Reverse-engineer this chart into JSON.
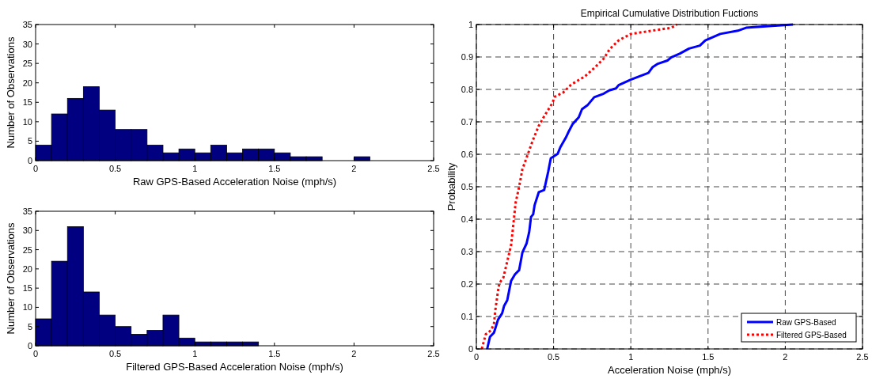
{
  "chart_data": [
    {
      "type": "histogram",
      "xlabel": "Raw GPS-Based Acceleration Noise (mph/s)",
      "ylabel": "Number of Observations",
      "color": "#000080",
      "bins": [
        0,
        0.1,
        0.2,
        0.3,
        0.4,
        0.5,
        0.6,
        0.7,
        0.8,
        0.9,
        1,
        1.1,
        1.2,
        1.3,
        1.4,
        1.5,
        1.6,
        1.7,
        1.8,
        1.9,
        2,
        2.1,
        2.2,
        2.3,
        2.4,
        2.5
      ],
      "values": [
        4,
        12,
        16,
        19,
        13,
        8,
        8,
        4,
        2,
        3,
        2,
        4,
        2,
        3,
        3,
        2,
        1,
        1,
        0,
        0,
        1,
        0,
        0,
        0,
        0
      ],
      "xlim": [
        0,
        2.5
      ],
      "xticks": [
        0,
        0.5,
        1,
        1.5,
        2,
        2.5
      ],
      "ylim": [
        0,
        35
      ],
      "yticks": [
        0,
        5,
        10,
        15,
        20,
        25,
        30,
        35
      ]
    },
    {
      "type": "histogram",
      "xlabel": "Filtered GPS-Based Acceleration Noise (mph/s)",
      "ylabel": "Number of Observations",
      "color": "#000080",
      "bins": [
        0,
        0.1,
        0.2,
        0.3,
        0.4,
        0.5,
        0.6,
        0.7,
        0.8,
        0.9,
        1,
        1.1,
        1.2,
        1.3,
        1.4,
        1.5,
        1.6,
        1.7,
        1.8,
        1.9,
        2,
        2.1,
        2.2,
        2.3,
        2.4,
        2.5
      ],
      "values": [
        7,
        22,
        31,
        14,
        8,
        5,
        3,
        4,
        8,
        2,
        1,
        1,
        1,
        1,
        0,
        0,
        0,
        0,
        0,
        0,
        0,
        0,
        0,
        0,
        0
      ],
      "xlim": [
        0,
        2.5
      ],
      "xticks": [
        0,
        0.5,
        1,
        1.5,
        2,
        2.5
      ],
      "ylim": [
        0,
        35
      ],
      "yticks": [
        0,
        5,
        10,
        15,
        20,
        25,
        30,
        35
      ]
    },
    {
      "type": "line",
      "title": "Empirical Cumulative Distribution Fuctions",
      "xlabel": "Acceleration Noise (mph/s)",
      "ylabel": "Probability",
      "xlim": [
        0,
        2.5
      ],
      "xticks": [
        0,
        0.5,
        1,
        1.5,
        2,
        2.5
      ],
      "ylim": [
        0,
        1
      ],
      "yticks": [
        0,
        0.1,
        0.2,
        0.3,
        0.4,
        0.5,
        0.6,
        0.7,
        0.8,
        0.9,
        1
      ],
      "grid": true,
      "legend": "bottom right",
      "series": [
        {
          "name": "Raw GPS-Based",
          "color": "#0000ff",
          "line_style": "solid",
          "x": [
            0.07,
            0.088,
            0.114,
            0.14,
            0.167,
            0.18,
            0.2,
            0.225,
            0.25,
            0.277,
            0.298,
            0.325,
            0.342,
            0.354,
            0.368,
            0.377,
            0.404,
            0.439,
            0.465,
            0.482,
            0.526,
            0.544,
            0.579,
            0.6,
            0.623,
            0.663,
            0.684,
            0.719,
            0.763,
            0.825,
            0.86,
            0.904,
            0.921,
            1.0,
            1.114,
            1.14,
            1.175,
            1.237,
            1.263,
            1.316,
            1.377,
            1.447,
            1.482,
            1.579,
            1.693,
            1.746,
            1.895,
            2.05
          ],
          "values": [
            0,
            0.037,
            0.05,
            0.09,
            0.11,
            0.133,
            0.15,
            0.21,
            0.23,
            0.243,
            0.297,
            0.325,
            0.36,
            0.407,
            0.415,
            0.443,
            0.483,
            0.49,
            0.546,
            0.588,
            0.601,
            0.622,
            0.651,
            0.672,
            0.693,
            0.714,
            0.739,
            0.751,
            0.776,
            0.787,
            0.797,
            0.803,
            0.813,
            0.83,
            0.851,
            0.868,
            0.879,
            0.889,
            0.899,
            0.91,
            0.926,
            0.935,
            0.951,
            0.971,
            0.981,
            0.99,
            0.995,
            1.0
          ]
        },
        {
          "name": "Filtered GPS-Based",
          "color": "#ff0000",
          "line_style": "dotted",
          "x": [
            0.035,
            0.061,
            0.096,
            0.114,
            0.123,
            0.14,
            0.149,
            0.175,
            0.2,
            0.225,
            0.242,
            0.254,
            0.277,
            0.298,
            0.333,
            0.368,
            0.404,
            0.439,
            0.491,
            0.509,
            0.561,
            0.614,
            0.702,
            0.772,
            0.825,
            0.863,
            0.921,
            1.0,
            1.123,
            1.263,
            1.298
          ],
          "values": [
            0,
            0.045,
            0.058,
            0.078,
            0.12,
            0.178,
            0.203,
            0.22,
            0.27,
            0.32,
            0.395,
            0.45,
            0.5,
            0.554,
            0.6,
            0.646,
            0.688,
            0.717,
            0.757,
            0.778,
            0.79,
            0.815,
            0.84,
            0.87,
            0.895,
            0.924,
            0.951,
            0.971,
            0.98,
            0.99,
            1.0
          ]
        }
      ]
    }
  ]
}
